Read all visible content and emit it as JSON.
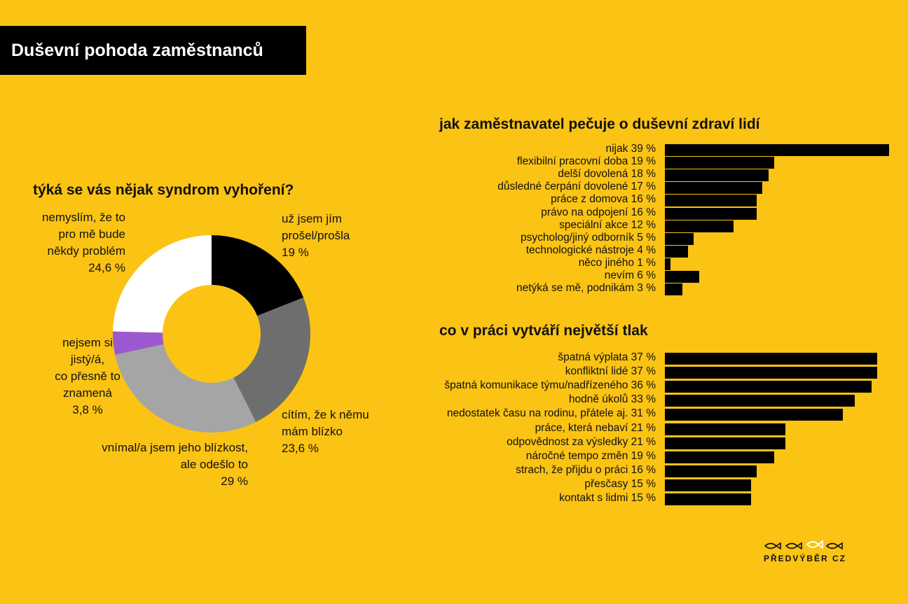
{
  "title": "Duševní pohoda zaměstnanců",
  "colors": {
    "background": "#FBC314",
    "bar": "#000000",
    "title_bg": "#000000"
  },
  "chart_data": [
    {
      "type": "pie",
      "title": "týká se vás nějak syndrom vyhoření?",
      "style": "donut",
      "slices": [
        {
          "label_lines": [
            "už jsem jím",
            "prošel/prošla",
            "19 %"
          ],
          "value": 19,
          "color": "#000000"
        },
        {
          "label_lines": [
            "cítím, že k němu",
            "mám blízko",
            "23,6 %"
          ],
          "value": 23.6,
          "color": "#6E6E6E"
        },
        {
          "label_lines": [
            "vnímal/a jsem jeho blízkost,",
            "ale odešlo to",
            "29 %"
          ],
          "value": 29,
          "color": "#A5A5A5"
        },
        {
          "label_lines": [
            "nejsem si",
            "jistý/á,",
            "co přesně to",
            "znamená",
            "3,8 %"
          ],
          "value": 3.8,
          "color": "#9B59D0"
        },
        {
          "label_lines": [
            "nemyslím, že to",
            "pro mě bude",
            "někdy problém",
            "24,6 %"
          ],
          "value": 24.6,
          "color": "#FFFFFF"
        }
      ]
    },
    {
      "type": "bar",
      "orientation": "horizontal",
      "title": "jak zaměstnavatel pečuje o duševní zdraví lidí",
      "categories": [
        "nijak 39 %",
        "flexibilní pracovní doba 19 %",
        "delší dovolená 18 %",
        "důsledné čerpání dovolené 17 %",
        "práce z domova 16 %",
        "právo na odpojení 16 %",
        "speciální akce 12 %",
        "psycholog/jiný odborník 5 %",
        "technologické nástroje 4 %",
        "něco jiného 1 %",
        "nevím 6 %",
        "netýká se mě, podnikám 3 %"
      ],
      "values": [
        39,
        19,
        18,
        17,
        16,
        16,
        12,
        5,
        4,
        1,
        6,
        3
      ]
    },
    {
      "type": "bar",
      "orientation": "horizontal",
      "title": "co v práci vytváří největší tlak",
      "categories": [
        "špatná výplata 37 %",
        "konfliktní lidé 37 %",
        "špatná komunikace týmu/nadřízeného 36 %",
        "hodně úkolů 33 %",
        "nedostatek času na rodinu, přátele aj. 31 %",
        "práce, která nebaví 21 %",
        "odpovědnost za výsledky 21 %",
        "náročné tempo změn 19 %",
        "strach, že přijdu o práci 16 %",
        "přesčasy 15 %",
        "kontakt s lidmi 15 %"
      ],
      "values": [
        37,
        37,
        36,
        33,
        31,
        21,
        21,
        19,
        16,
        15,
        15
      ]
    }
  ],
  "logo": {
    "icon": "fish-logo-icon",
    "text": "PŘEDVÝBĚR CZ"
  }
}
